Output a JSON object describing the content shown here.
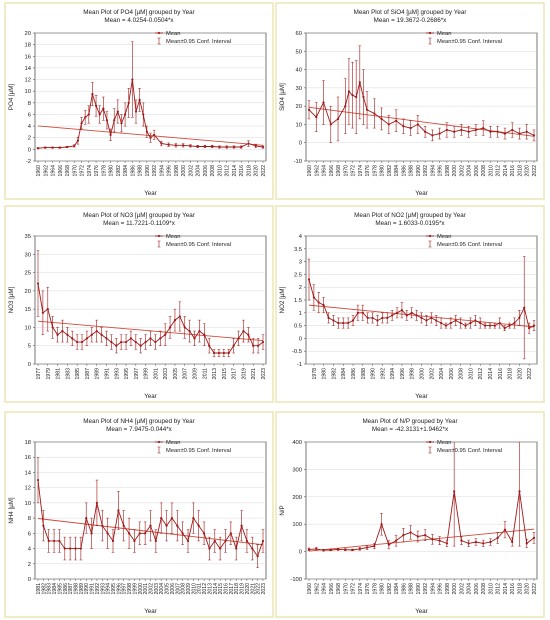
{
  "colors": {
    "panel_border": "#ede7b7",
    "line": "#a01818",
    "trend": "#d24c3c",
    "plot_bg": "#ffffff",
    "grid": "#cfcfcf"
  },
  "legend_items": {
    "mean": "Mean",
    "ci": "Mean±0.95 Conf. Interval"
  },
  "chart_data": [
    {
      "type": "line",
      "title": "Mean Plot of PO4 [µM] grouped by  Year",
      "subtitle": "Mean = 4.0254-0.0504*x",
      "xlabel": "Year",
      "ylabel": "PO4 [µM]",
      "ylim": [
        -2,
        20
      ],
      "yticks": [
        -2,
        0,
        2,
        4,
        6,
        8,
        10,
        12,
        14,
        16,
        18,
        20
      ],
      "x_tick_labels": [
        "1960",
        "1962",
        "1964",
        "1966",
        "1968",
        "1970",
        "1972",
        "1974",
        "1976",
        "1978",
        "1980",
        "1982",
        "1984",
        "1986",
        "1988",
        "1990",
        "1992",
        "1994",
        "1996",
        "1998",
        "2000",
        "2002",
        "2004",
        "2006",
        "2008",
        "2010",
        "2012",
        "2014",
        "2016",
        "2018",
        "2020",
        "2022"
      ],
      "legend": "top-right",
      "grid": true,
      "trend": [
        4.03,
        0.7
      ],
      "series": [
        {
          "x": [
            1960,
            1962,
            1964,
            1966,
            1968,
            1970,
            1971,
            1972,
            1973,
            1974,
            1975,
            1976,
            1977,
            1978,
            1979,
            1980,
            1981,
            1982,
            1983,
            1984,
            1985,
            1986,
            1987,
            1988,
            1989,
            1990,
            1991,
            1992,
            1994,
            1996,
            1998,
            2000,
            2002,
            2004,
            2006,
            2008,
            2010,
            2012,
            2014,
            2016,
            2018,
            2020,
            2022
          ],
          "mean": [
            0.2,
            0.3,
            0.3,
            0.3,
            0.4,
            0.6,
            1.5,
            4.5,
            5.5,
            6.0,
            9.5,
            7.5,
            6.0,
            7.0,
            5.0,
            2.5,
            5.0,
            6.5,
            4.5,
            6.0,
            8.0,
            12.0,
            6.5,
            8.5,
            6.0,
            3.0,
            2.0,
            2.5,
            1.0,
            0.8,
            0.7,
            0.7,
            0.6,
            0.5,
            0.5,
            0.5,
            0.4,
            0.4,
            0.4,
            0.4,
            1.0,
            0.6,
            0.4
          ],
          "ci": [
            0.1,
            0.1,
            0.1,
            0.1,
            0.1,
            0.2,
            0.6,
            1.0,
            1.2,
            1.5,
            2.0,
            1.8,
            1.5,
            2.0,
            1.5,
            1.0,
            2.0,
            2.0,
            1.5,
            2.0,
            2.5,
            6.5,
            2.0,
            2.0,
            2.0,
            1.0,
            0.8,
            0.8,
            0.4,
            0.3,
            0.3,
            0.3,
            0.2,
            0.2,
            0.2,
            0.2,
            0.2,
            0.2,
            0.2,
            0.2,
            0.5,
            0.3,
            0.2
          ]
        }
      ]
    },
    {
      "type": "line",
      "title": "Mean Plot of SiO4 [µM] grouped by  Year",
      "subtitle": "Mean = 19.3672-0.2686*x",
      "xlabel": "Year",
      "ylabel": "SiO4 [µM]",
      "ylim": [
        -10,
        60
      ],
      "yticks": [
        -10,
        0,
        10,
        20,
        30,
        40,
        50,
        60
      ],
      "x_tick_labels": [
        "1960",
        "1962",
        "1964",
        "1966",
        "1968",
        "1970",
        "1972",
        "1974",
        "1976",
        "1978",
        "1980",
        "1982",
        "1984",
        "1986",
        "1988",
        "1990",
        "1992",
        "1994",
        "1996",
        "1998",
        "2000",
        "2002",
        "2004",
        "2006",
        "2008",
        "2010",
        "2012",
        "2014",
        "2016",
        "2018",
        "2020",
        "2022"
      ],
      "legend": "top-right",
      "grid": true,
      "trend": [
        19.37,
        3.5
      ],
      "series": [
        {
          "x": [
            1960,
            1962,
            1964,
            1966,
            1968,
            1970,
            1971,
            1972,
            1973,
            1974,
            1975,
            1976,
            1978,
            1980,
            1982,
            1984,
            1986,
            1988,
            1990,
            1992,
            1994,
            1996,
            1998,
            2000,
            2002,
            2004,
            2006,
            2008,
            2010,
            2012,
            2014,
            2016,
            2018,
            2020,
            2022
          ],
          "mean": [
            18,
            14,
            22,
            10,
            13,
            20,
            28,
            26,
            25,
            33,
            25,
            18,
            16,
            13,
            10,
            12,
            9,
            8,
            10,
            6,
            4,
            5,
            7,
            6,
            7,
            6,
            7,
            8,
            6,
            6,
            5,
            7,
            5,
            6,
            4
          ],
          "ci": [
            5,
            8,
            12,
            10,
            12,
            15,
            18,
            18,
            20,
            20,
            15,
            10,
            8,
            6,
            5,
            6,
            4,
            4,
            5,
            3,
            3,
            3,
            4,
            3,
            3,
            3,
            3,
            4,
            3,
            3,
            3,
            4,
            3,
            4,
            3
          ]
        }
      ]
    },
    {
      "type": "line",
      "title": "Mean Plot of NO3 [µM] grouped by  Year",
      "subtitle": "Mean = 11.7221-0.1109*x",
      "xlabel": "Year",
      "ylabel": "NO3 [µM]",
      "ylim": [
        0,
        35
      ],
      "yticks": [
        0,
        5,
        10,
        15,
        20,
        25,
        30,
        35
      ],
      "x_tick_labels": [
        "1977",
        "1979",
        "1981",
        "1983",
        "1985",
        "1987",
        "1989",
        "1991",
        "1993",
        "1995",
        "1997",
        "1999",
        "2001",
        "2003",
        "2005",
        "2007",
        "2009",
        "2011",
        "2013",
        "2015",
        "2017",
        "2019",
        "2021",
        "2023"
      ],
      "legend": "top-right",
      "grid": true,
      "trend": [
        11.72,
        6.4
      ],
      "series": [
        {
          "x": [
            1977,
            1978,
            1979,
            1980,
            1981,
            1982,
            1983,
            1984,
            1985,
            1986,
            1987,
            1988,
            1989,
            1990,
            1991,
            1992,
            1993,
            1994,
            1995,
            1996,
            1997,
            1998,
            1999,
            2000,
            2001,
            2002,
            2003,
            2004,
            2005,
            2006,
            2007,
            2008,
            2009,
            2010,
            2011,
            2012,
            2013,
            2014,
            2015,
            2016,
            2017,
            2018,
            2019,
            2020,
            2021,
            2022,
            2023
          ],
          "mean": [
            22,
            14,
            15,
            10,
            8,
            9,
            8,
            7,
            6,
            6,
            7,
            8,
            9,
            8,
            7,
            6,
            5,
            6,
            6,
            7,
            6,
            5,
            6,
            7,
            6,
            7,
            8,
            10,
            12,
            13,
            10,
            9,
            7,
            9,
            8,
            5,
            3,
            3,
            3,
            3,
            5,
            7,
            9,
            8,
            5,
            5,
            6
          ],
          "ci": [
            9,
            6,
            6,
            3,
            2,
            3,
            2,
            2,
            2,
            2,
            2,
            2,
            3,
            2,
            2,
            2,
            2,
            2,
            2,
            2,
            2,
            2,
            2,
            2,
            2,
            2,
            3,
            3,
            3,
            4,
            3,
            3,
            2,
            3,
            3,
            2,
            1,
            1,
            1,
            1,
            2,
            2,
            3,
            2,
            2,
            2,
            2
          ]
        }
      ]
    },
    {
      "type": "line",
      "title": "Mean Plot of NO2 [µM] grouped by  Year",
      "subtitle": "Mean = 1.6033-0.0195*x",
      "xlabel": "Year",
      "ylabel": "NO2 [µM]",
      "ylim": [
        -1,
        4
      ],
      "yticks": [
        -1.0,
        -0.5,
        0.0,
        0.5,
        1.0,
        1.5,
        2.0,
        2.5,
        3.0,
        3.5,
        4.0
      ],
      "x_tick_labels": [
        "1978",
        "1980",
        "1982",
        "1984",
        "1986",
        "1988",
        "1990",
        "1992",
        "1994",
        "1996",
        "1998",
        "2000",
        "2002",
        "2004",
        "2006",
        "2008",
        "2010",
        "2012",
        "2014",
        "2016",
        "2018",
        "2020",
        "2022"
      ],
      "legend": "top-right",
      "grid": true,
      "trend": [
        1.3,
        0.45
      ],
      "series": [
        {
          "x": [
            1977,
            1978,
            1979,
            1980,
            1981,
            1982,
            1983,
            1984,
            1985,
            1986,
            1987,
            1988,
            1989,
            1990,
            1991,
            1992,
            1993,
            1994,
            1995,
            1996,
            1997,
            1998,
            1999,
            2000,
            2001,
            2002,
            2003,
            2004,
            2005,
            2006,
            2007,
            2008,
            2009,
            2010,
            2011,
            2012,
            2013,
            2014,
            2015,
            2016,
            2017,
            2018,
            2019,
            2020,
            2021,
            2022,
            2023
          ],
          "mean": [
            2.3,
            1.6,
            1.4,
            1.3,
            0.8,
            0.7,
            0.6,
            0.6,
            0.6,
            0.7,
            1.0,
            1.0,
            0.8,
            0.8,
            0.7,
            0.8,
            0.8,
            0.9,
            1.0,
            1.1,
            0.9,
            1.0,
            0.9,
            0.8,
            0.7,
            0.8,
            0.7,
            0.6,
            0.5,
            0.6,
            0.7,
            0.6,
            0.5,
            0.6,
            0.7,
            0.6,
            0.5,
            0.5,
            0.5,
            0.6,
            0.4,
            0.5,
            0.6,
            0.8,
            1.2,
            0.4,
            0.5
          ],
          "ci": [
            0.8,
            0.5,
            0.4,
            0.3,
            0.2,
            0.2,
            0.2,
            0.2,
            0.2,
            0.2,
            0.3,
            0.3,
            0.2,
            0.2,
            0.2,
            0.2,
            0.2,
            0.2,
            0.2,
            0.3,
            0.2,
            0.2,
            0.2,
            0.2,
            0.2,
            0.2,
            0.2,
            0.2,
            0.1,
            0.2,
            0.2,
            0.2,
            0.1,
            0.2,
            0.2,
            0.2,
            0.1,
            0.1,
            0.1,
            0.2,
            0.1,
            0.1,
            0.2,
            0.3,
            2.0,
            0.2,
            0.2
          ]
        }
      ]
    },
    {
      "type": "line",
      "title": "Mean Plot of NH4 [µM] grouped by  Year",
      "subtitle": "Mean = 7.9475-0.044*x",
      "xlabel": "Year",
      "ylabel": "NH4 [µM]",
      "ylim": [
        0,
        18
      ],
      "yticks": [
        0,
        2,
        4,
        6,
        8,
        10,
        12,
        14,
        16,
        18
      ],
      "x_tick_labels": [
        "1981",
        "1982",
        "1983",
        "1984",
        "1985",
        "1986",
        "1987",
        "1988",
        "1989",
        "1990",
        "1991",
        "1992",
        "1993",
        "1994",
        "1995",
        "1996",
        "1997",
        "1998",
        "1999",
        "2000",
        "2001",
        "2002",
        "2003",
        "2004",
        "2005",
        "2006",
        "2007",
        "2008",
        "2009",
        "2010",
        "2011",
        "2012",
        "2013",
        "2014",
        "2015",
        "2016",
        "2017",
        "2018",
        "2019",
        "2020",
        "2021",
        "2022",
        "2023"
      ],
      "legend": "top-right",
      "grid": true,
      "trend": [
        7.95,
        4.5
      ],
      "series": [
        {
          "x": [
            1981,
            1982,
            1983,
            1984,
            1985,
            1986,
            1987,
            1988,
            1989,
            1990,
            1991,
            1992,
            1993,
            1994,
            1995,
            1996,
            1997,
            1998,
            1999,
            2000,
            2001,
            2002,
            2003,
            2004,
            2005,
            2006,
            2007,
            2008,
            2009,
            2010,
            2011,
            2012,
            2013,
            2014,
            2015,
            2016,
            2017,
            2018,
            2019,
            2020,
            2021,
            2022,
            2023
          ],
          "mean": [
            13,
            7,
            5,
            5,
            5,
            4,
            4,
            4,
            4,
            8,
            6,
            10,
            7,
            6,
            5,
            9,
            7,
            6,
            5,
            6,
            6,
            7,
            5,
            8,
            7,
            8,
            7,
            6,
            5,
            8,
            7,
            6,
            4,
            5,
            4,
            5,
            6,
            4,
            7,
            5,
            4,
            3,
            5
          ],
          "ci": [
            3,
            2,
            1.5,
            1.5,
            1.5,
            1.5,
            1.5,
            1.5,
            1.5,
            2,
            2,
            3,
            2,
            2,
            1.5,
            2.5,
            2,
            2,
            1.5,
            1.5,
            1.5,
            2,
            1.5,
            2,
            2,
            2,
            2,
            1.5,
            1.5,
            2,
            2,
            1.5,
            1.5,
            1.5,
            1.5,
            1.5,
            1.5,
            1.5,
            2,
            1.5,
            1.5,
            1.5,
            1.5
          ]
        }
      ]
    },
    {
      "type": "line",
      "title": "Mean Plot of N/P grouped by  Year",
      "subtitle": "Mean = -42.3131+1.9462*x",
      "xlabel": "Year",
      "ylabel": "N/P",
      "ylim": [
        -100,
        400
      ],
      "yticks": [
        -100,
        0,
        100,
        200,
        300,
        400
      ],
      "x_tick_labels": [
        "1960",
        "1962",
        "1964",
        "1966",
        "1968",
        "1970",
        "1972",
        "1974",
        "1976",
        "1978",
        "1980",
        "1982",
        "1984",
        "1986",
        "1988",
        "1990",
        "1992",
        "1994",
        "1996",
        "1998",
        "2000",
        "2002",
        "2004",
        "2006",
        "2008",
        "2010",
        "2012",
        "2014",
        "2016",
        "2018",
        "2020",
        "2022"
      ],
      "legend": "top-right",
      "grid": true,
      "trend": [
        2,
        82
      ],
      "series": [
        {
          "x": [
            1960,
            1962,
            1964,
            1966,
            1968,
            1970,
            1972,
            1974,
            1976,
            1978,
            1980,
            1982,
            1984,
            1986,
            1988,
            1990,
            1992,
            1994,
            1996,
            1998,
            2000,
            2002,
            2004,
            2006,
            2008,
            2010,
            2012,
            2014,
            2016,
            2018,
            2020,
            2022
          ],
          "mean": [
            8,
            10,
            5,
            6,
            8,
            7,
            6,
            10,
            15,
            20,
            100,
            25,
            40,
            60,
            70,
            55,
            60,
            45,
            40,
            30,
            220,
            40,
            30,
            35,
            30,
            35,
            50,
            80,
            35,
            220,
            30,
            50
          ],
          "ci": [
            5,
            5,
            3,
            3,
            4,
            4,
            3,
            5,
            8,
            10,
            40,
            15,
            20,
            25,
            25,
            20,
            20,
            18,
            15,
            12,
            200,
            15,
            12,
            12,
            12,
            12,
            20,
            30,
            15,
            200,
            15,
            20
          ]
        }
      ]
    }
  ]
}
